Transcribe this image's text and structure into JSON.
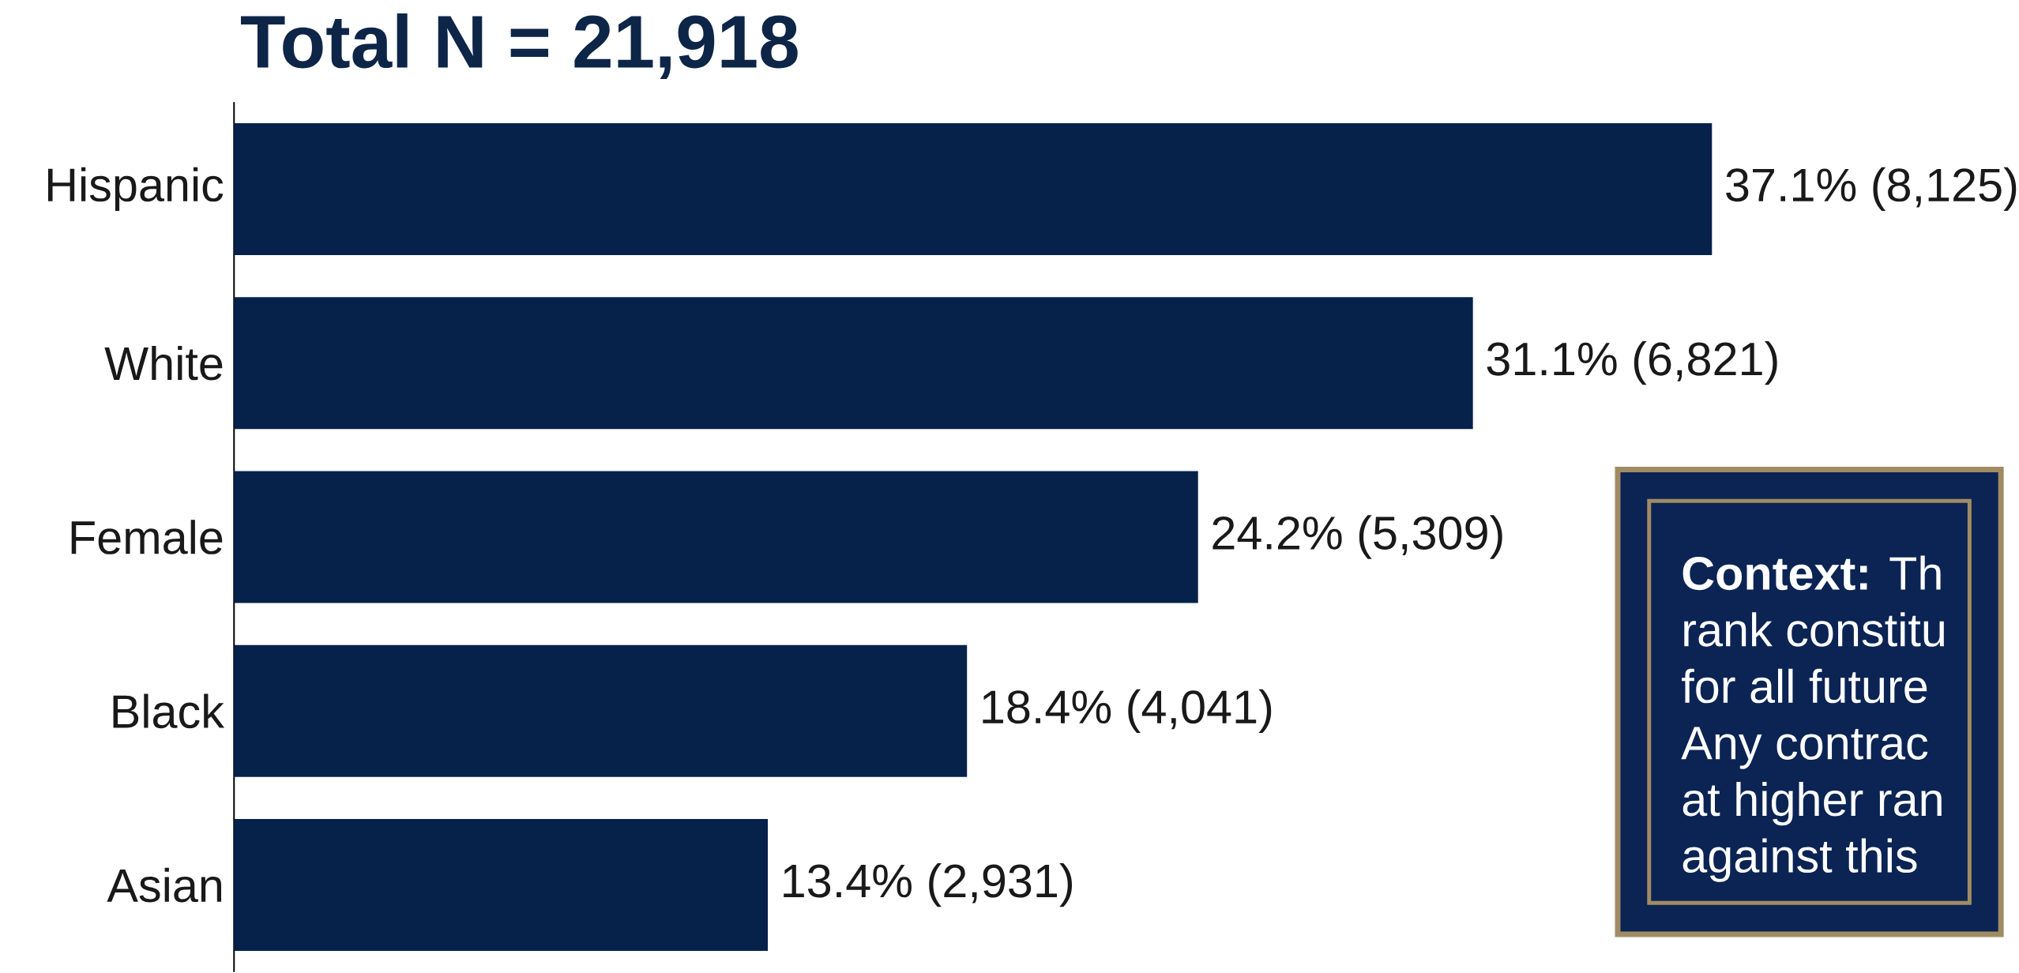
{
  "chart_data": {
    "type": "bar",
    "orientation": "horizontal",
    "title": "Total N = 21,918",
    "categories": [
      "Hispanic",
      "White",
      "Female",
      "Black",
      "Asian"
    ],
    "values": [
      37.1,
      31.1,
      24.2,
      18.4,
      13.4
    ],
    "value_labels": [
      "37.1% (8,125)",
      "31.1% (6,821)",
      "24.2% (5,309)",
      "18.4% (4,041)",
      "13.4% (2,931)"
    ],
    "color": "#06224a",
    "annotations": [
      "**Context:** Th",
      "rank constitu",
      "for all future",
      "Any contrac",
      "at higher ran",
      "against this"
    ]
  }
}
